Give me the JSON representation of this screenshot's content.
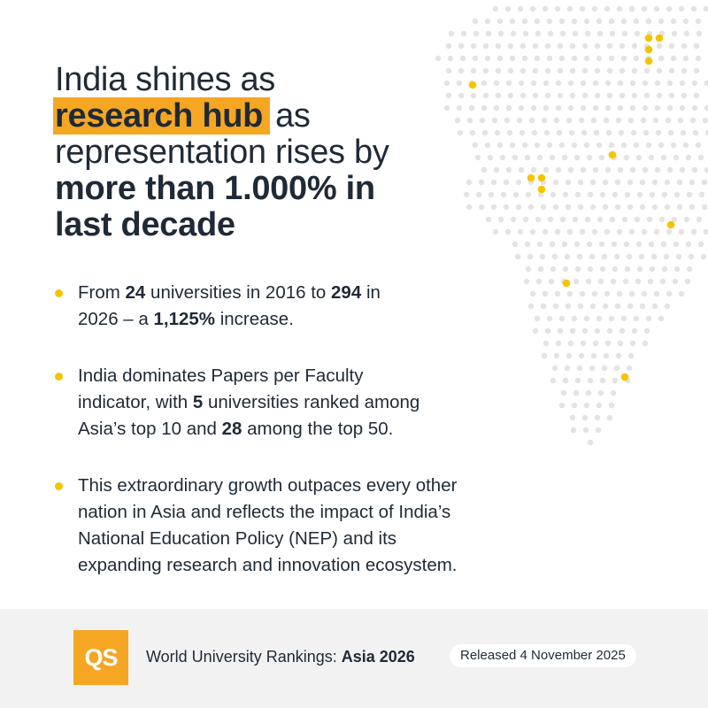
{
  "headline": {
    "line1": "India shines as",
    "highlight": "research hub",
    "line2_rest": "as",
    "line3": "representation rises by",
    "line4_bold": "more than 1.000% in",
    "line5_bold": "last decade"
  },
  "bullets": [
    {
      "p1": "From ",
      "b1": "24",
      "p2": " universities in 2016 to ",
      "b2": "294",
      "p3": " in",
      "p4": "2026 – a ",
      "b3": "1,125%",
      "p5": " increase."
    },
    {
      "p1": "India dominates Papers per Faculty",
      "p2": "indicator, with ",
      "b1": "5",
      "p3": " universities ranked among",
      "p4": "Asia’s top 10 and ",
      "b2": "28",
      "p5": " among the top 50."
    },
    {
      "l1": "This extraordinary growth outpaces every other",
      "l2": "nation in Asia and reflects the impact of India’s",
      "l3": "National Education Policy (NEP) and its",
      "l4": "expanding research and innovation ecosystem."
    }
  ],
  "footer": {
    "logo_text": "QS",
    "ranking_prefix": "World University Rankings: ",
    "ranking_bold": "Asia 2026",
    "released": "Released 4 November 2025"
  },
  "colors": {
    "accent": "#f5a623",
    "bullet": "#f2c500",
    "text": "#1f2a36",
    "map_dot": "#e3e3e3",
    "map_highlight": "#f5c400",
    "footer_bg": "#f2f2f2"
  },
  "icons": {
    "logo": "qs-logo",
    "map": "dotted-map-graphic"
  }
}
